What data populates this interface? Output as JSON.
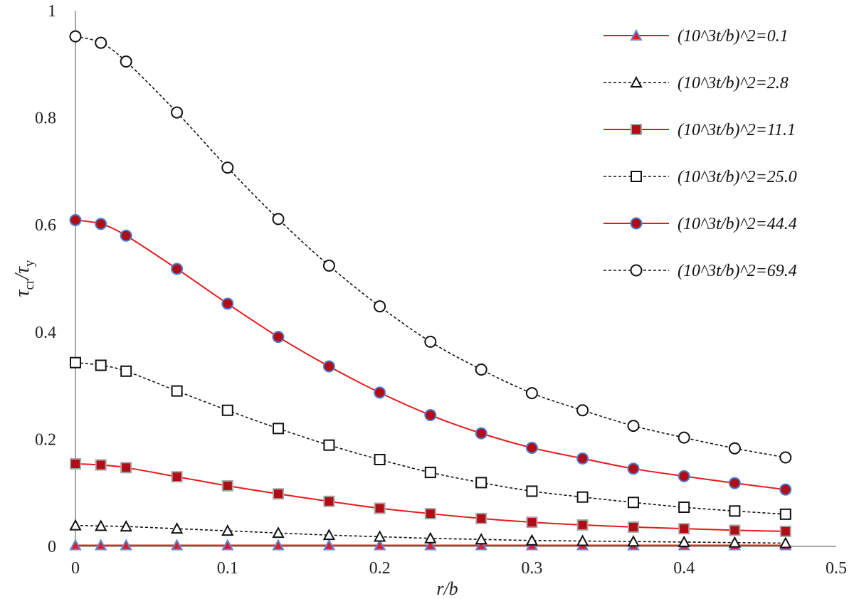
{
  "chart_data": {
    "type": "line",
    "xlabel": "r/b",
    "ylabel": {
      "main": "τ",
      "sub1": "cr",
      "slash": "/τ",
      "sub2": "y"
    },
    "xlim": [
      0,
      0.5
    ],
    "ylim": [
      0,
      1
    ],
    "xticks": [
      "0",
      "0.1",
      "0.2",
      "0.3",
      "0.4",
      "0.5"
    ],
    "xtick_values": [
      0,
      0.1,
      0.2,
      0.3,
      0.4,
      0.5
    ],
    "yticks": [
      "0",
      "0.2",
      "0.4",
      "0.6",
      "0.8",
      "1"
    ],
    "ytick_values": [
      0,
      0.2,
      0.4,
      0.6,
      0.8,
      1.0
    ],
    "grid": false,
    "legend_position": "top-right",
    "x": [
      0,
      0.0167,
      0.0333,
      0.0667,
      0.1,
      0.1333,
      0.1667,
      0.2,
      0.2333,
      0.2667,
      0.3,
      0.3333,
      0.3667,
      0.4,
      0.4333,
      0.4667
    ],
    "series": [
      {
        "name": "(10^3t/b)^2=0.1",
        "marker": "triangle-filled",
        "line": "solid",
        "line_color": "#e8191c",
        "marker_fill": "#e8191c",
        "marker_stroke": "#5b8fd6",
        "values": [
          0.002,
          0.002,
          0.002,
          0.002,
          0.002,
          0.002,
          0.002,
          0.002,
          0.002,
          0.002,
          0.002,
          0.002,
          0.002,
          0.002,
          0.002,
          0.002
        ]
      },
      {
        "name": "(10^3t/b)^2=2.8",
        "marker": "triangle-open",
        "line": "dashed",
        "line_color": "#111111",
        "marker_fill": "#ffffff",
        "marker_stroke": "#111111",
        "values": [
          0.039,
          0.038,
          0.037,
          0.033,
          0.029,
          0.025,
          0.021,
          0.018,
          0.015,
          0.013,
          0.011,
          0.01,
          0.009,
          0.008,
          0.007,
          0.006
        ]
      },
      {
        "name": "(10^3t/b)^2=11.1",
        "marker": "square-filled",
        "line": "solid",
        "line_color": "#e8191c",
        "marker_fill": "#b00d16",
        "marker_stroke": "#a6a6a6",
        "values": [
          0.154,
          0.152,
          0.147,
          0.13,
          0.113,
          0.098,
          0.084,
          0.071,
          0.061,
          0.052,
          0.045,
          0.04,
          0.036,
          0.033,
          0.03,
          0.028
        ]
      },
      {
        "name": "(10^3t/b)^2=25.0",
        "marker": "square-open",
        "line": "dashed",
        "line_color": "#111111",
        "marker_fill": "#ffffff",
        "marker_stroke": "#111111",
        "values": [
          0.343,
          0.338,
          0.327,
          0.29,
          0.254,
          0.22,
          0.189,
          0.162,
          0.138,
          0.119,
          0.103,
          0.092,
          0.082,
          0.073,
          0.066,
          0.06
        ]
      },
      {
        "name": "(10^3t/b)^2=44.4",
        "marker": "circle-filled",
        "line": "solid",
        "line_color": "#e8191c",
        "marker_fill": "#b00d16",
        "marker_stroke": "#4a7fd4",
        "values": [
          0.609,
          0.602,
          0.58,
          0.518,
          0.453,
          0.391,
          0.336,
          0.287,
          0.245,
          0.211,
          0.184,
          0.164,
          0.145,
          0.131,
          0.118,
          0.106
        ]
      },
      {
        "name": "(10^3t/b)^2=69.4",
        "marker": "circle-open",
        "line": "dashed",
        "line_color": "#111111",
        "marker_fill": "#ffffff",
        "marker_stroke": "#111111",
        "values": [
          0.952,
          0.94,
          0.905,
          0.81,
          0.707,
          0.611,
          0.524,
          0.448,
          0.382,
          0.33,
          0.286,
          0.254,
          0.225,
          0.203,
          0.183,
          0.166
        ]
      }
    ]
  }
}
